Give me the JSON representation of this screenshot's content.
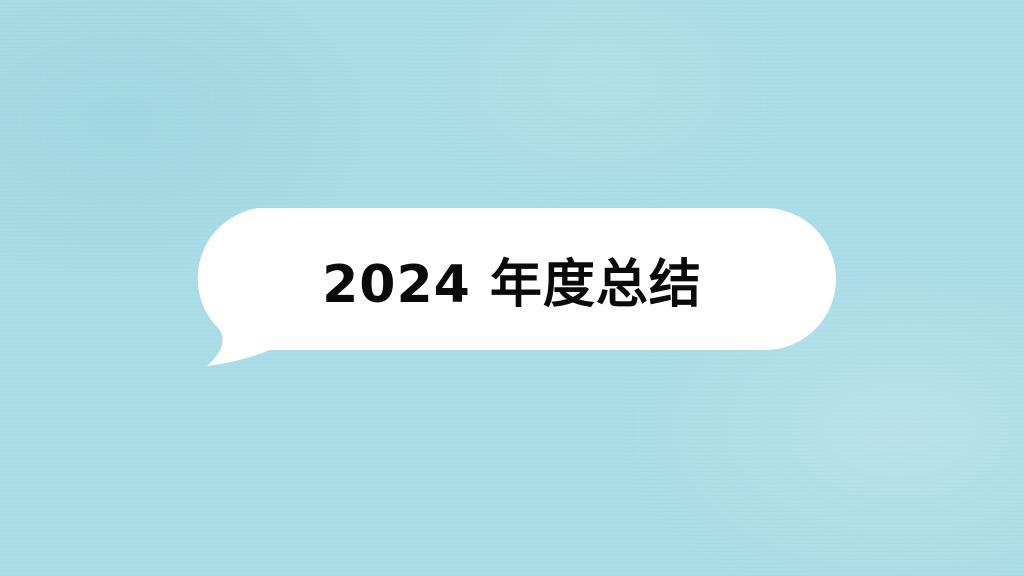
{
  "page": {
    "background_color": "#a9dce6",
    "bubble_color": "#ffffff",
    "text_color": "#0a0a0a"
  },
  "bubble": {
    "title": "2024 年度总结"
  }
}
